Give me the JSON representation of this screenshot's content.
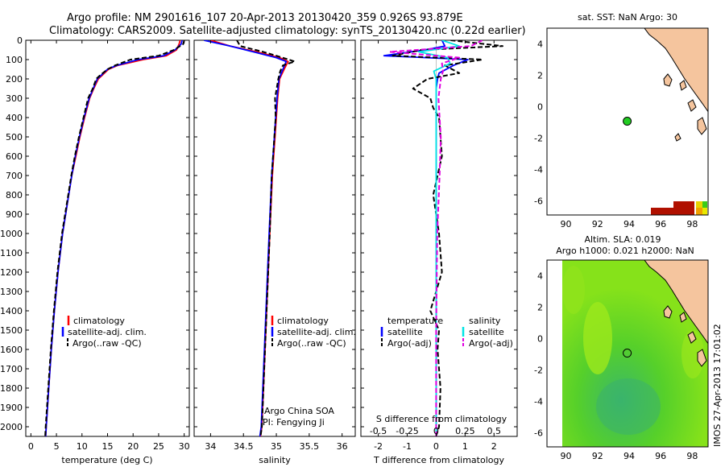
{
  "header": {
    "title_line1": "Argo profile: NM 2901616_107 20-Apr-2013 20130420_359 0.926S 93.879E",
    "title_line2": "Climatology: CARS2009. Satellite-adjusted climatology: synTS_20130420.nc (0.22d earlier)"
  },
  "colors": {
    "climatology": "#ff0000",
    "satellite": "#0000ff",
    "argo": "#000000",
    "satellite_salinity": "#00e5e5",
    "argo_adj_salinity": "#e000e0",
    "land": "#f5c59e",
    "sst_dark_red": "#b01000",
    "sla_green": "#3ccc18",
    "argo_marker": "#22cc22"
  },
  "chart_data": [
    {
      "id": "temperature",
      "type": "line",
      "xlabel": "temperature (deg C)",
      "ylabel": "",
      "xlim": [
        -1,
        31
      ],
      "ylim": [
        2050,
        0
      ],
      "xticks": [
        0,
        5,
        10,
        15,
        20,
        25,
        30
      ],
      "yticks": [
        0,
        100,
        200,
        300,
        400,
        500,
        600,
        700,
        800,
        900,
        1000,
        1100,
        1200,
        1300,
        1400,
        1500,
        1600,
        1700,
        1800,
        1900,
        2000
      ],
      "legend": [
        "climatology",
        "satellite-adj. clim.",
        "Argo(..raw -QC)"
      ],
      "series": [
        {
          "name": "climatology",
          "color": "red",
          "depth": [
            0,
            20,
            50,
            80,
            100,
            130,
            150,
            180,
            200,
            250,
            300,
            400,
            500,
            600,
            700,
            800,
            900,
            1000,
            1200,
            1400,
            1600,
            1800,
            2000,
            2050
          ],
          "values": [
            29.2,
            29.0,
            28.5,
            26.5,
            22.0,
            17.0,
            15.2,
            14.0,
            13.2,
            12.3,
            11.5,
            10.5,
            9.6,
            8.8,
            8.0,
            7.4,
            6.8,
            6.2,
            5.3,
            4.6,
            4.0,
            3.5,
            3.0,
            2.9
          ]
        },
        {
          "name": "satellite-adj. clim.",
          "color": "blue",
          "depth": [
            0,
            20,
            50,
            80,
            100,
            130,
            150,
            180,
            200,
            250,
            300,
            400,
            500,
            600,
            700,
            800,
            900,
            1000,
            1200,
            1400,
            1600,
            1800,
            2000,
            2050
          ],
          "values": [
            29.6,
            29.4,
            28.2,
            26.0,
            21.0,
            16.8,
            15.0,
            13.8,
            13.0,
            12.2,
            11.4,
            10.4,
            9.5,
            8.7,
            8.0,
            7.4,
            6.8,
            6.2,
            5.3,
            4.6,
            4.0,
            3.5,
            3.0,
            2.9
          ]
        },
        {
          "name": "Argo(..raw -QC)",
          "color": "black",
          "dashed": true,
          "depth": [
            0,
            20,
            50,
            80,
            100,
            130,
            150,
            180,
            200,
            250,
            300,
            400,
            500,
            600,
            700,
            800,
            900,
            1000,
            1200,
            1400,
            1600,
            1800,
            2000,
            2050
          ],
          "values": [
            30.0,
            29.8,
            28.0,
            25.0,
            19.5,
            16.5,
            15.0,
            13.6,
            12.8,
            12.1,
            11.2,
            10.3,
            9.4,
            8.6,
            7.9,
            7.3,
            6.7,
            6.1,
            5.2,
            4.5,
            3.9,
            3.4,
            2.9,
            2.8
          ]
        }
      ]
    },
    {
      "id": "salinity",
      "type": "line",
      "xlabel": "salinity",
      "ylabel": "",
      "xlim": [
        33.75,
        36.2
      ],
      "ylim": [
        2050,
        0
      ],
      "xticks": [
        34,
        34.5,
        35,
        35.5,
        36
      ],
      "legend": [
        "climatology",
        "satellite-adj. clim.",
        "Argo(..raw -QC)"
      ],
      "annotation": [
        "Argo China SOA",
        "PI: Fengying Ji"
      ],
      "series": [
        {
          "name": "climatology",
          "color": "red",
          "depth": [
            0,
            30,
            60,
            90,
            110,
            150,
            200,
            300,
            400,
            500,
            700,
            1000,
            1500,
            2000,
            2050
          ],
          "values": [
            34.0,
            34.3,
            34.7,
            35.05,
            35.18,
            35.12,
            35.05,
            35.02,
            35.0,
            34.98,
            34.94,
            34.9,
            34.84,
            34.78,
            34.76
          ]
        },
        {
          "name": "satellite-adj. clim.",
          "color": "blue",
          "depth": [
            0,
            30,
            60,
            90,
            110,
            150,
            200,
            300,
            400,
            500,
            700,
            1000,
            1500,
            2000,
            2050
          ],
          "values": [
            33.9,
            34.3,
            34.65,
            35.0,
            35.15,
            35.1,
            35.04,
            35.01,
            34.99,
            34.97,
            34.93,
            34.89,
            34.83,
            34.77,
            34.75
          ]
        },
        {
          "name": "Argo(..raw -QC)",
          "color": "black",
          "dashed": true,
          "depth": [
            0,
            30,
            60,
            80,
            110,
            130,
            160,
            200,
            300,
            400,
            500,
            700,
            1000,
            1500,
            2000,
            2050
          ],
          "values": [
            34.4,
            34.45,
            34.8,
            35.0,
            35.28,
            35.1,
            35.06,
            35.03,
            34.98,
            34.99,
            34.97,
            34.93,
            34.9,
            34.84,
            34.78,
            34.76
          ]
        }
      ]
    },
    {
      "id": "difference",
      "type": "line",
      "xlabel": "T difference from climatology",
      "top_label": "S difference from climatology",
      "xlim": [
        -2.6,
        2.8
      ],
      "ylim": [
        2050,
        0
      ],
      "xticks": [
        -2,
        -1,
        0,
        1,
        2
      ],
      "xticks_top": [
        -0.5,
        -0.25,
        0,
        0.25,
        0.5
      ],
      "legend_title_t": "temperature",
      "legend_title_s": "salinity",
      "legend": [
        "satellite",
        "Argo(-adj)",
        "satellite",
        "Argo(-adj)"
      ],
      "series": [
        {
          "name": "satellite",
          "variable": "T",
          "color": "blue",
          "depth": [
            0,
            30,
            50,
            80,
            100,
            130,
            170,
            200,
            250,
            300,
            400,
            600,
            900,
            1200,
            1500,
            1800,
            2000,
            2050
          ],
          "values": [
            0.2,
            0.3,
            -0.4,
            -1.8,
            1.1,
            0.6,
            0.1,
            0.05,
            0.0,
            0.0,
            0.0,
            0.0,
            0.0,
            0.0,
            0.0,
            0.0,
            0.0,
            0.0
          ]
        },
        {
          "name": "Argo(-adj)",
          "variable": "T",
          "color": "black",
          "dashed": true,
          "depth": [
            0,
            30,
            50,
            80,
            100,
            130,
            170,
            200,
            250,
            300,
            350,
            400,
            600,
            800,
            1000,
            1200,
            1400,
            1500,
            1600,
            1800,
            2000,
            2050
          ],
          "values": [
            0.5,
            2.3,
            -0.5,
            -1.5,
            1.6,
            0.3,
            0.8,
            -0.3,
            -0.8,
            -0.2,
            -0.1,
            0.1,
            0.2,
            -0.1,
            0.1,
            0.2,
            -0.2,
            0.1,
            0.05,
            0.15,
            0.1,
            0.0
          ]
        },
        {
          "name": "satellite",
          "variable": "S",
          "color": "cyan",
          "depth": [
            0,
            30,
            60,
            90,
            120,
            160,
            200,
            300,
            400,
            600,
            1000,
            1500,
            2000,
            2050
          ],
          "values": [
            0.05,
            0.2,
            -0.15,
            0.1,
            0.12,
            -0.02,
            0.0,
            0.0,
            0.0,
            0.0,
            0.0,
            0.0,
            0.0,
            0.0
          ]
        },
        {
          "name": "Argo(-adj)",
          "variable": "S",
          "color": "magenta",
          "dashed": true,
          "depth": [
            0,
            30,
            60,
            90,
            120,
            160,
            200,
            300,
            400,
            500,
            700,
            1000,
            1500,
            2000,
            2050
          ],
          "values": [
            0.4,
            0.3,
            -0.4,
            0.2,
            0.05,
            0.06,
            0.04,
            0.02,
            0.03,
            0.04,
            0.03,
            0.01,
            0.0,
            0.0,
            0.0
          ]
        }
      ]
    },
    {
      "id": "sst_map",
      "type": "heatmap",
      "title": "sat. SST: NaN Argo: 30",
      "xlim": [
        88.8,
        99.0
      ],
      "ylim": [
        -6.9,
        5.0
      ],
      "xticks": [
        90,
        92,
        94,
        96,
        98
      ],
      "yticks": [
        -6,
        -4,
        -2,
        0,
        2,
        4
      ],
      "argo_lon": 93.879,
      "argo_lat": -0.926
    },
    {
      "id": "sla_map",
      "type": "heatmap",
      "title_line1": "Altim. SLA: 0.019",
      "title_line2": "Argo h1000: 0.021 h2000: NaN",
      "xlim": [
        88.8,
        99.0
      ],
      "ylim": [
        -6.9,
        5.0
      ],
      "xticks": [
        90,
        92,
        94,
        96,
        98
      ],
      "yticks": [
        -6,
        -4,
        -2,
        0,
        2,
        4
      ],
      "argo_lon": 93.879,
      "argo_lat": -0.926
    }
  ],
  "footer": {
    "credit": "IMOS 27-Apr-2013 17:01:02"
  }
}
